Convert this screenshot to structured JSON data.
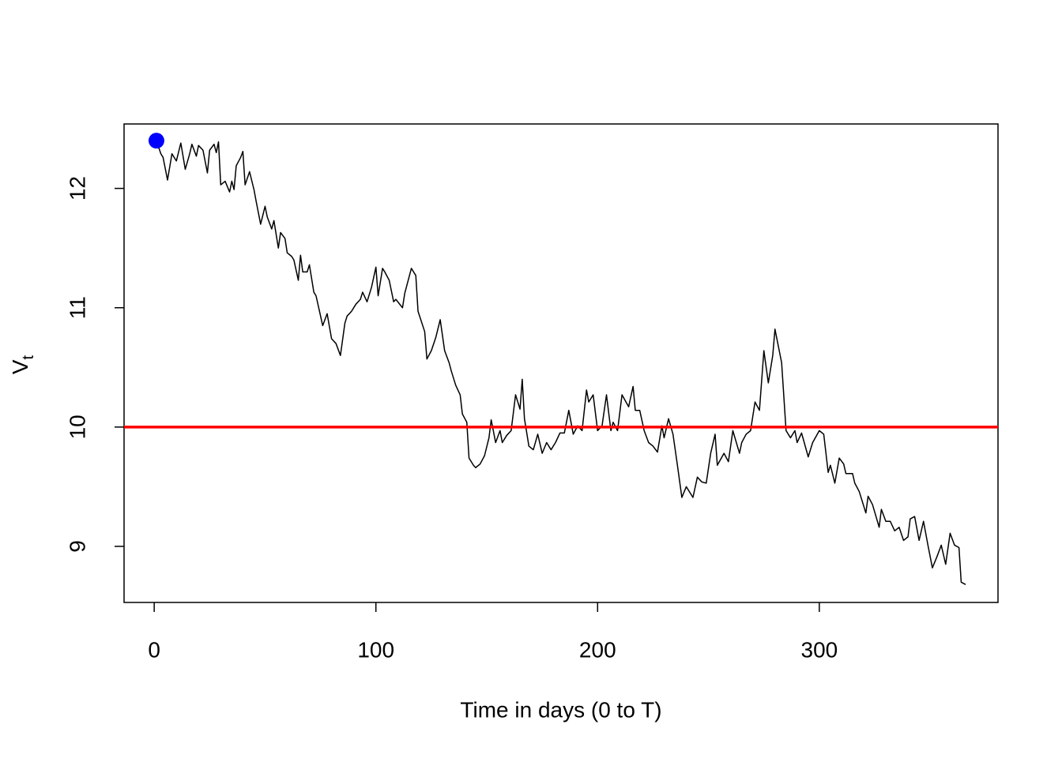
{
  "chart_data": {
    "type": "line",
    "xlabel": "Time in days (0 to T)",
    "ylabel": "V",
    "ylabel_sub": "t",
    "x": [
      1,
      3,
      4,
      6,
      8,
      10,
      12,
      14,
      16,
      17,
      19,
      20,
      22,
      24,
      25,
      27,
      28,
      29,
      30,
      32,
      34,
      35,
      36,
      37,
      39,
      40,
      41,
      43,
      45,
      46,
      48,
      50,
      51,
      53,
      54,
      56,
      57,
      59,
      60,
      62,
      63,
      65,
      66,
      67,
      69,
      70,
      72,
      73,
      76,
      77,
      78,
      80,
      82,
      84,
      86,
      87,
      89,
      91,
      93,
      94,
      96,
      98,
      100,
      101,
      103,
      104,
      106,
      108,
      109,
      112,
      113,
      116,
      118,
      119,
      122,
      123,
      125,
      127,
      129,
      131,
      133,
      134,
      136,
      138,
      139,
      141,
      142,
      144,
      145,
      147,
      149,
      151,
      152,
      154,
      156,
      157,
      159,
      161,
      163,
      165,
      166,
      167,
      169,
      171,
      173,
      175,
      177,
      179,
      181,
      183,
      185,
      187,
      189,
      191,
      193,
      195,
      196,
      198,
      200,
      202,
      204,
      206,
      207,
      209,
      211,
      214,
      216,
      217,
      219,
      221,
      223,
      225,
      227,
      229,
      230,
      232,
      234,
      236,
      238,
      240,
      243,
      245,
      247,
      249,
      251,
      253,
      254,
      257,
      259,
      261,
      264,
      265,
      267,
      269,
      271,
      273,
      275,
      277,
      279,
      280,
      283,
      285,
      287,
      289,
      290,
      292,
      295,
      297,
      300,
      302,
      304,
      305,
      307,
      309,
      311,
      312,
      315,
      316,
      318,
      321,
      322,
      324,
      327,
      328,
      330,
      332,
      334,
      336,
      338,
      340,
      341,
      343,
      345,
      347,
      349,
      351,
      353,
      355,
      357,
      359,
      361,
      363,
      364,
      366
    ],
    "series": [
      {
        "color": "#000000",
        "values": [
          12.4,
          12.29,
          12.26,
          12.07,
          12.29,
          12.23,
          12.38,
          12.16,
          12.29,
          12.37,
          12.27,
          12.36,
          12.32,
          12.13,
          12.32,
          12.37,
          12.3,
          12.39,
          12.03,
          12.06,
          11.97,
          12.06,
          11.99,
          12.19,
          12.26,
          12.31,
          12.03,
          12.14,
          11.99,
          11.89,
          11.7,
          11.85,
          11.76,
          11.66,
          11.73,
          11.5,
          11.63,
          11.58,
          11.46,
          11.43,
          11.4,
          11.23,
          11.44,
          11.3,
          11.3,
          11.36,
          11.13,
          11.1,
          10.85,
          10.9,
          10.95,
          10.74,
          10.7,
          10.6,
          10.87,
          10.93,
          10.97,
          11.03,
          11.07,
          11.13,
          11.05,
          11.17,
          11.34,
          11.1,
          11.33,
          11.3,
          11.23,
          11.05,
          11.07,
          11.0,
          11.12,
          11.33,
          11.27,
          10.97,
          10.8,
          10.57,
          10.64,
          10.75,
          10.9,
          10.64,
          10.54,
          10.47,
          10.35,
          10.27,
          10.11,
          10.04,
          9.74,
          9.68,
          9.66,
          9.69,
          9.76,
          9.91,
          10.06,
          9.87,
          9.97,
          9.87,
          9.93,
          9.97,
          10.27,
          10.15,
          10.4,
          10.07,
          9.84,
          9.81,
          9.94,
          9.78,
          9.87,
          9.81,
          9.87,
          9.95,
          9.95,
          10.14,
          9.94,
          10.01,
          9.97,
          10.31,
          10.21,
          10.27,
          9.97,
          10.01,
          10.27,
          9.97,
          10.04,
          9.97,
          10.27,
          10.17,
          10.34,
          10.14,
          10.14,
          9.97,
          9.87,
          9.84,
          9.79,
          10.01,
          9.91,
          10.07,
          9.94,
          9.68,
          9.41,
          9.5,
          9.41,
          9.58,
          9.54,
          9.53,
          9.78,
          9.94,
          9.68,
          9.78,
          9.71,
          9.97,
          9.78,
          9.87,
          9.94,
          9.97,
          10.21,
          10.14,
          10.64,
          10.37,
          10.6,
          10.82,
          10.54,
          9.97,
          9.91,
          9.97,
          9.87,
          9.95,
          9.75,
          9.87,
          9.97,
          9.94,
          9.62,
          9.68,
          9.53,
          9.74,
          9.69,
          9.61,
          9.61,
          9.53,
          9.46,
          9.28,
          9.42,
          9.35,
          9.16,
          9.31,
          9.21,
          9.21,
          9.13,
          9.16,
          9.05,
          9.08,
          9.23,
          9.25,
          9.05,
          9.21,
          9.01,
          8.82,
          8.91,
          9.01,
          8.85,
          9.11,
          9.01,
          8.99,
          8.7,
          8.68
        ]
      }
    ],
    "start_point": {
      "x": 1,
      "y": 12.4,
      "color": "#0000ff"
    },
    "hline": {
      "value": 10,
      "color": "#ff0000"
    },
    "xlim": [
      -13.6,
      380.6
    ],
    "ylim": [
      8.53,
      12.54
    ],
    "xticks": [
      0,
      100,
      200,
      300
    ],
    "yticks": [
      9,
      10,
      11,
      12
    ]
  }
}
